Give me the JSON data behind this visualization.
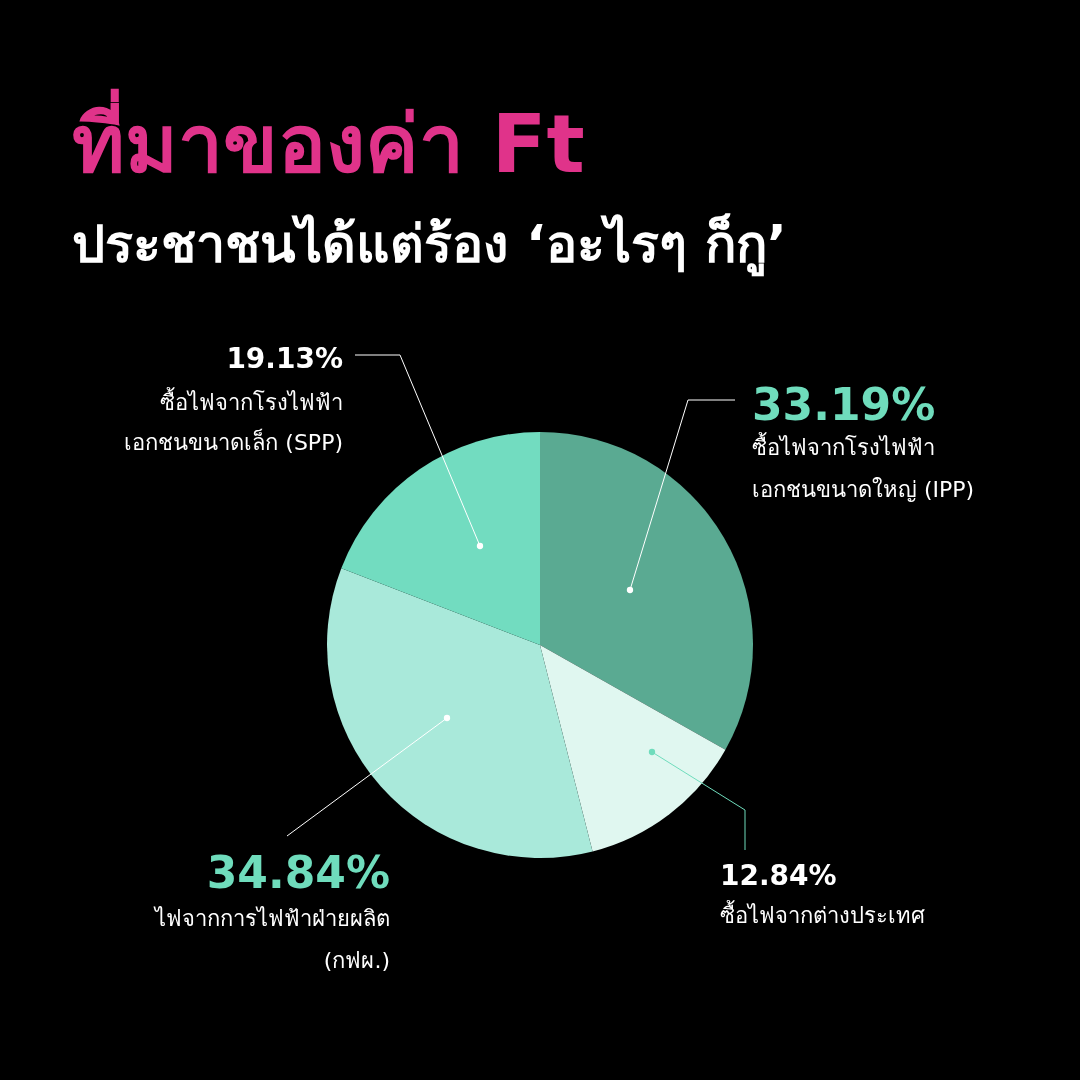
{
  "chart_data": {
    "type": "pie",
    "title": "ที่มาของค่า Ft",
    "subtitle": "ประชาชนได้แต่ร้อง ‘อะไรๆ ก็กู’",
    "categories": [
      "ซื้อไฟจากโรงไฟฟ้า\nเอกชนขนาดใหญ่ (IPP)",
      "ซื้อไฟจากต่างประเทศ",
      "ไฟจากการไฟฟ้าฝ่ายผลิต\n(กฟผ.)",
      "ซื้อไฟจากโรงไฟฟ้า\nเอกชนขนาดเล็ก (SPP)"
    ],
    "values": [
      33.19,
      12.84,
      34.84,
      19.13
    ],
    "value_labels": [
      "33.19%",
      "12.84%",
      "34.84%",
      "19.13%"
    ],
    "colors": [
      "#5aaa92",
      "#e0f7f0",
      "#a9e9da",
      "#72dcc0"
    ]
  }
}
